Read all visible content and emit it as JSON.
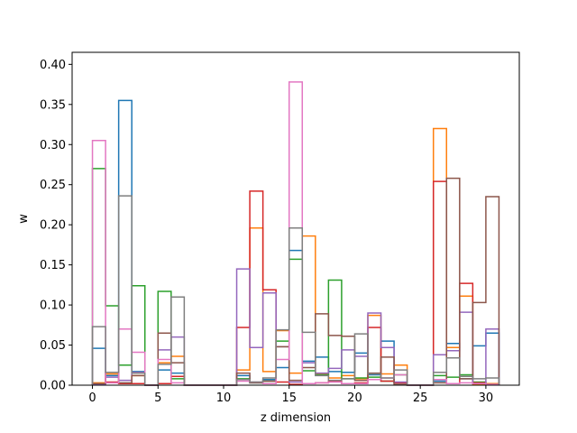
{
  "chart_data": {
    "type": "step-histogram",
    "title": "",
    "xlabel": "z dimension",
    "ylabel": "w",
    "xlim": [
      -1.55,
      32.55
    ],
    "ylim": [
      0,
      0.415
    ],
    "xticks": [
      0,
      5,
      10,
      15,
      20,
      25,
      30
    ],
    "yticks": [
      0.0,
      0.05,
      0.1,
      0.15,
      0.2,
      0.25,
      0.3,
      0.35,
      0.4
    ],
    "xtick_labels": [
      "0",
      "5",
      "10",
      "15",
      "20",
      "25",
      "30"
    ],
    "ytick_labels": [
      "0.00",
      "0.05",
      "0.10",
      "0.15",
      "0.20",
      "0.25",
      "0.30",
      "0.35",
      "0.40"
    ],
    "bin_edges": [
      0,
      1,
      2,
      3,
      4,
      5,
      6,
      7,
      8,
      9,
      10,
      11,
      12,
      13,
      14,
      15,
      16,
      17,
      18,
      19,
      20,
      21,
      22,
      23,
      24,
      25,
      26,
      27,
      28,
      29,
      30,
      31
    ],
    "grid": false,
    "legend": "none",
    "series": [
      {
        "color": "#1f77b4",
        "values": [
          0.046,
          0.012,
          0.355,
          0.017,
          0,
          0.019,
          0.015,
          0,
          0,
          0,
          0,
          0.012,
          0.003,
          0.007,
          0.022,
          0.168,
          0.03,
          0.035,
          0.017,
          0.016,
          0.04,
          0.013,
          0.055,
          0.003,
          0,
          0,
          0.005,
          0.052,
          0.008,
          0.049,
          0.065
        ]
      },
      {
        "color": "#ff7f0e",
        "values": [
          0.003,
          0.014,
          0.002,
          0.012,
          0,
          0.028,
          0.036,
          0,
          0,
          0,
          0,
          0.019,
          0.196,
          0.017,
          0.068,
          0.015,
          0.186,
          0.014,
          0.009,
          0.012,
          0.008,
          0.087,
          0.014,
          0.025,
          0,
          0,
          0.32,
          0.047,
          0.111,
          0.001,
          0.002
        ]
      },
      {
        "color": "#2ca02c",
        "values": [
          0.27,
          0.099,
          0.025,
          0.124,
          0,
          0.117,
          0.008,
          0,
          0,
          0,
          0,
          0.008,
          0.003,
          0.005,
          0.055,
          0.157,
          0.018,
          0.013,
          0.131,
          0.008,
          0.009,
          0.01,
          0.005,
          0.013,
          0,
          0,
          0.012,
          0.01,
          0.013,
          0.004,
          0.001
        ]
      },
      {
        "color": "#d62728",
        "values": [
          0.002,
          0.004,
          0.002,
          0.002,
          0,
          0.002,
          0.011,
          0,
          0,
          0,
          0,
          0.072,
          0.242,
          0.119,
          0.004,
          0.001,
          0.002,
          0.003,
          0.005,
          0.002,
          0.003,
          0.072,
          0.005,
          0.003,
          0,
          0,
          0.254,
          0.002,
          0.127,
          0.003,
          0.001
        ]
      },
      {
        "color": "#9467bd",
        "values": [
          0.001,
          0.01,
          0.006,
          0.016,
          0,
          0.044,
          0.06,
          0,
          0,
          0,
          0,
          0.145,
          0.047,
          0.115,
          0.048,
          0.004,
          0.028,
          0.015,
          0.021,
          0.044,
          0.036,
          0.09,
          0.047,
          0.004,
          0,
          0,
          0.038,
          0.043,
          0.091,
          0.002,
          0.07
        ]
      },
      {
        "color": "#8c564b",
        "values": [
          0.002,
          0.016,
          0.003,
          0.012,
          0,
          0.065,
          0.028,
          0,
          0,
          0,
          0,
          0.015,
          0.003,
          0.005,
          0.048,
          0.006,
          0.022,
          0.089,
          0.062,
          0.061,
          0.006,
          0.015,
          0.035,
          0.001,
          0,
          0,
          0.003,
          0.258,
          0.008,
          0.103,
          0.235
        ]
      },
      {
        "color": "#e377c2",
        "values": [
          0.305,
          0.003,
          0.07,
          0.041,
          0,
          0.032,
          0.003,
          0,
          0,
          0,
          0,
          0.005,
          0.004,
          0.002,
          0.032,
          0.378,
          0.002,
          0.003,
          0.004,
          0.002,
          0.002,
          0.007,
          0.009,
          0.013,
          0,
          0,
          0.007,
          0.002,
          0.003,
          0.002,
          0.001
        ]
      },
      {
        "color": "#7f7f7f",
        "values": [
          0.073,
          0.016,
          0.236,
          0.015,
          0,
          0.026,
          0.11,
          0,
          0,
          0,
          0,
          0.007,
          0.004,
          0.009,
          0.069,
          0.196,
          0.066,
          0.012,
          0.006,
          0.008,
          0.064,
          0.014,
          0.009,
          0.019,
          0,
          0,
          0.016,
          0.034,
          0.011,
          0.008,
          0.009
        ]
      }
    ]
  }
}
